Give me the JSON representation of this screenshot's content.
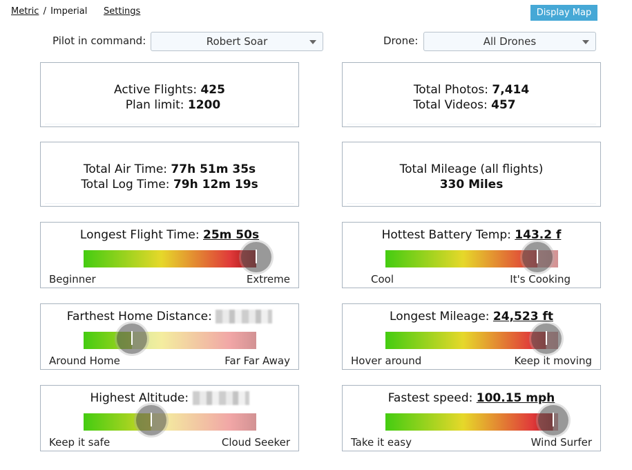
{
  "header": {
    "metric": "Metric",
    "sep": "/",
    "imperial": "Imperial",
    "settings": "Settings",
    "display_map": "Display Map"
  },
  "filters": {
    "pilot_label": "Pilot in command:",
    "pilot_value": "Robert Soar",
    "drone_label": "Drone:",
    "drone_value": "All Drones"
  },
  "stats": {
    "active_label": "Active Flights:",
    "active_value": "425",
    "plan_label": "Plan limit:",
    "plan_value": "1200",
    "photos_label": "Total Photos:",
    "photos_value": "7,414",
    "videos_label": "Total Videos:",
    "videos_value": "457",
    "air_label": "Total Air Time:",
    "air_value": "77h 51m 35s",
    "log_label": "Total Log Time:",
    "log_value": "79h 12m 19s",
    "mileage_label": "Total Mileage (all flights)",
    "mileage_value": "330 Miles"
  },
  "gauges": [
    {
      "title": "Longest Flight Time:",
      "value": "25m 50s",
      "left": "Beginner",
      "right": "Extreme",
      "level": 1.0,
      "fill": 1.0,
      "colors": [
        "#44cc11",
        "#e6d82a",
        "#e03a3a",
        "#9b0d10"
      ]
    },
    {
      "title": "Hottest Battery Temp:",
      "value": "143.2 f",
      "left": "Cool",
      "right": "It's Cooking",
      "level": 0.88,
      "fill": 0.88,
      "colors": [
        "#44cc11",
        "#e6d82a",
        "#e03a3a",
        "#9b0d10"
      ]
    },
    {
      "title": "Farthest Home Distance:",
      "value": "",
      "left": "Around Home",
      "right": "Far Far Away",
      "level": 0.28,
      "fill": 0.28,
      "colors": [
        "#44cc11",
        "#e6d82a",
        "#e03a3a",
        "#9b0d10"
      ]
    },
    {
      "title": "Longest Mileage:",
      "value": "24,523 ft",
      "left": "Hover around",
      "right": "Keep it moving",
      "level": 0.93,
      "fill": 0.93,
      "colors": [
        "#44cc11",
        "#e6d82a",
        "#e03a3a",
        "#9b0d10"
      ]
    },
    {
      "title": "Highest Altitude:",
      "value": "",
      "left": "Keep it safe",
      "right": "Cloud Seeker",
      "level": 0.39,
      "fill": 0.39,
      "colors": [
        "#44cc11",
        "#e6d82a",
        "#e03a3a",
        "#9b0d10"
      ]
    },
    {
      "title": "Fastest speed:",
      "value": "100.15 mph",
      "left": "Take it easy",
      "right": "Wind Surfer",
      "level": 0.97,
      "fill": 0.97,
      "colors": [
        "#44cc11",
        "#e6d82a",
        "#e03a3a",
        "#9b0d10"
      ]
    }
  ]
}
